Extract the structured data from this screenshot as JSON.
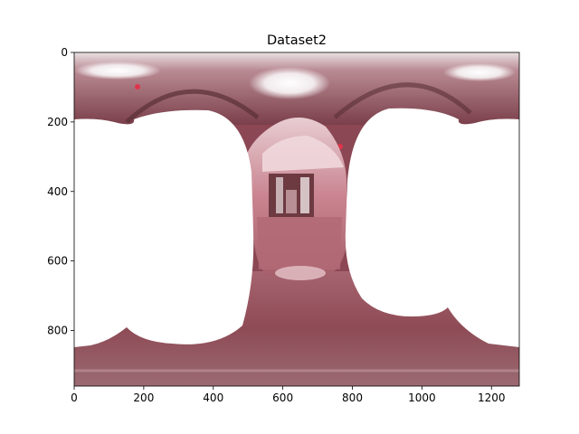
{
  "figure": {
    "title": "Dataset2"
  },
  "axes": {
    "x_ticks": [
      "0",
      "200",
      "400",
      "600",
      "800",
      "1000",
      "1200"
    ],
    "y_ticks": [
      "0",
      "200",
      "400",
      "600",
      "800"
    ],
    "x_range": [
      0,
      1280
    ],
    "y_range": [
      0,
      960
    ]
  },
  "image": {
    "description_kind": "equirectangular-panorama",
    "palette": {
      "dark_maroon": "#6e3a43",
      "mauve": "#9b5a64",
      "pink": "#c97f8b",
      "light_pink": "#e4b8bf",
      "ceiling_light": "#f2eeee",
      "floor": "#8f4a55"
    }
  }
}
